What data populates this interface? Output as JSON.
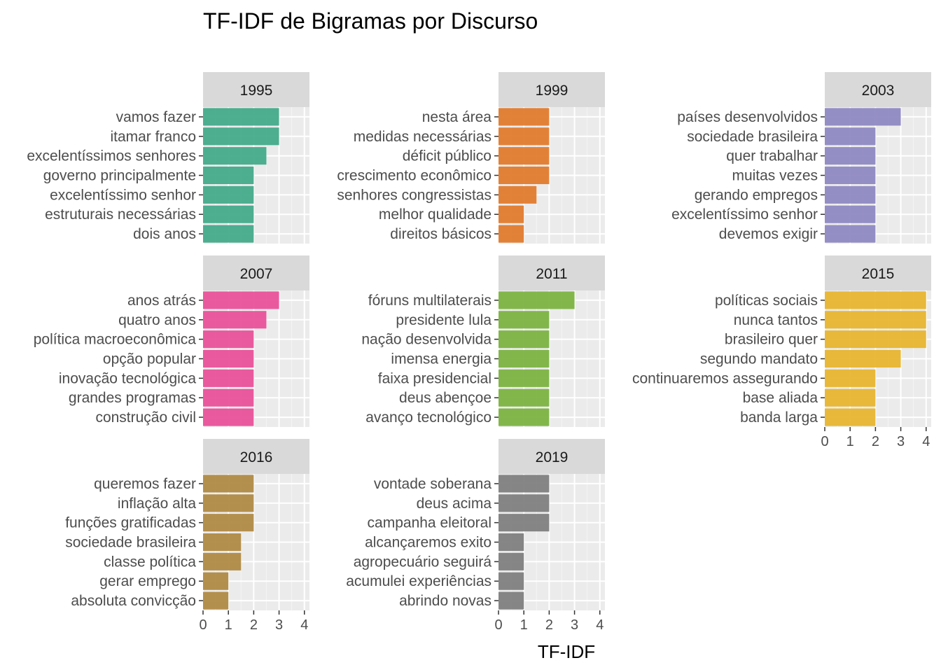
{
  "chart_data": {
    "type": "bar",
    "orientation": "horizontal",
    "title": "TF-IDF de Bigramas por Discurso",
    "xlabel": "TF-IDF",
    "ylabel": "",
    "xlim": [
      0,
      4.2
    ],
    "x_ticks": [
      "0",
      "1",
      "2",
      "3",
      "4"
    ],
    "grid": true,
    "legend": "none",
    "facets": [
      {
        "label": "1995",
        "color": "#44AA8A",
        "categories": [
          "vamos fazer",
          "itamar franco",
          "excelentíssimos senhores",
          "governo principalmente",
          "excelentíssimo senhor",
          "estruturais necessárias",
          "dois anos"
        ],
        "values": [
          3,
          3,
          2.5,
          2,
          2,
          2,
          2
        ]
      },
      {
        "label": "1999",
        "color": "#E07B2E",
        "categories": [
          "nesta área",
          "medidas necessárias",
          "déficit público",
          "crescimento econômico",
          "senhores congressistas",
          "melhor qualidade",
          "direitos básicos"
        ],
        "values": [
          2,
          2,
          2,
          2,
          1.5,
          1,
          1
        ]
      },
      {
        "label": "2003",
        "color": "#8E89C2",
        "categories": [
          "países desenvolvidos",
          "sociedade brasileira",
          "quer trabalhar",
          "muitas vezes",
          "gerando empregos",
          "excelentíssimo senhor",
          "devemos exigir"
        ],
        "values": [
          3,
          2,
          2,
          2,
          2,
          2,
          2
        ]
      },
      {
        "label": "2007",
        "color": "#E9519A",
        "categories": [
          "anos atrás",
          "quatro anos",
          "política macroeconômica",
          "opção popular",
          "inovação tecnológica",
          "grandes programas",
          "construção civil"
        ],
        "values": [
          3,
          2.5,
          2,
          2,
          2,
          2,
          2
        ]
      },
      {
        "label": "2011",
        "color": "#7CB342",
        "categories": [
          "fóruns multilaterais",
          "presidente lula",
          "nação desenvolvida",
          "imensa energia",
          "faixa presidencial",
          "deus abençoe",
          "avanço tecnológico"
        ],
        "values": [
          3,
          2,
          2,
          2,
          2,
          2,
          2
        ]
      },
      {
        "label": "2015",
        "color": "#E7B52F",
        "categories": [
          "políticas sociais",
          "nunca tantos",
          "brasileiro quer",
          "segundo mandato",
          "continuaremos assegurando",
          "base aliada",
          "banda larga"
        ],
        "values": [
          4,
          4,
          4,
          3,
          2,
          2,
          2
        ]
      },
      {
        "label": "2016",
        "color": "#B08A45",
        "categories": [
          "queremos fazer",
          "inflação alta",
          "funções gratificadas",
          "sociedade brasileira",
          "classe política",
          "gerar emprego",
          "absoluta convicção"
        ],
        "values": [
          2,
          2,
          2,
          1.5,
          1.5,
          1,
          1
        ]
      },
      {
        "label": "2019",
        "color": "#808080",
        "categories": [
          "vontade soberana",
          "deus acima",
          "campanha eleitoral",
          "alcançaremos exito",
          "agropecuário seguirá",
          "acumulei experiências",
          "abrindo novas"
        ],
        "values": [
          2,
          2,
          2,
          1,
          1,
          1,
          1
        ]
      }
    ]
  }
}
